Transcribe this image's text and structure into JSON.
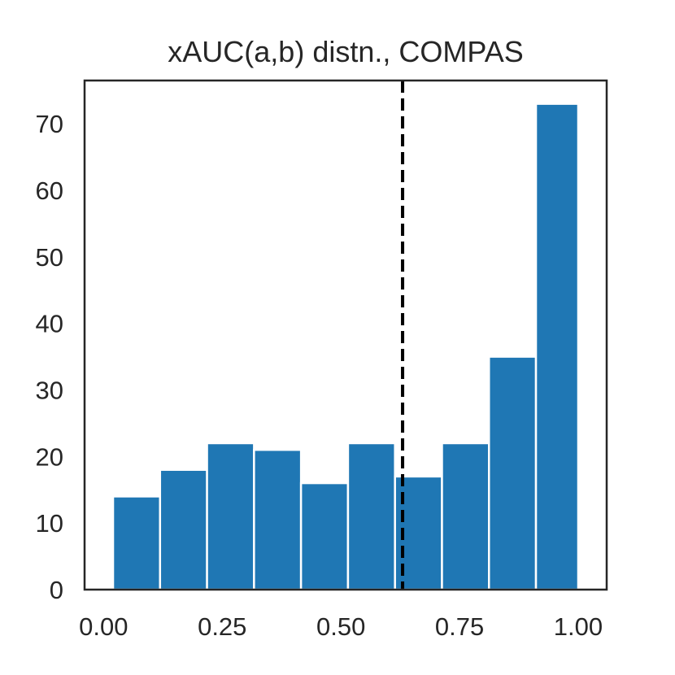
{
  "chart_data": {
    "type": "bar",
    "title": "xAUC(a,b) distn., COMPAS",
    "xlabel": "",
    "ylabel": "",
    "bin_edges": [
      0.02,
      0.119,
      0.218,
      0.317,
      0.416,
      0.515,
      0.614,
      0.713,
      0.812,
      0.911,
      1.0
    ],
    "values": [
      14,
      18,
      22,
      21,
      16,
      22,
      17,
      22,
      35,
      73
    ],
    "xlim": [
      -0.04,
      1.06
    ],
    "ylim": [
      0,
      76.5
    ],
    "xticks": [
      0.0,
      0.25,
      0.5,
      0.75,
      1.0
    ],
    "xtick_labels": [
      "0.00",
      "0.25",
      "0.50",
      "0.75",
      "1.00"
    ],
    "yticks": [
      0,
      10,
      20,
      30,
      40,
      50,
      60,
      70
    ],
    "ytick_labels": [
      "0",
      "10",
      "20",
      "30",
      "40",
      "50",
      "60",
      "70"
    ],
    "reference_line": {
      "x": 0.63,
      "style": "dashed",
      "color": "#000000"
    },
    "bar_color": "#1f77b4",
    "grid": false,
    "legend": "none"
  }
}
